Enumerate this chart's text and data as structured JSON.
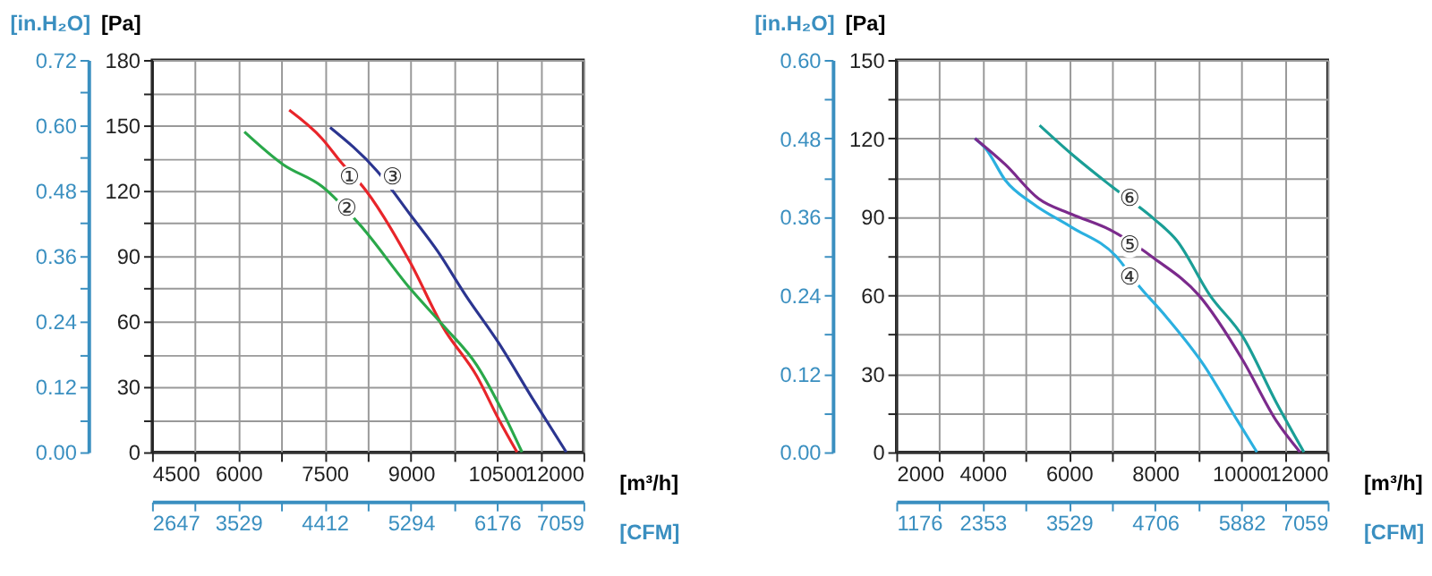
{
  "chart_data": [
    {
      "type": "line",
      "xlabel": "[m³/h]",
      "ylabel": "[Pa]",
      "y2label": "[in.H₂O]",
      "x2label": "[CFM]",
      "grid": true,
      "legend": false,
      "line_style": "solid",
      "marker": "none",
      "xlim": [
        4500,
        12000
      ],
      "xticks": [
        4500,
        {
          "value": 5250,
          "label": null
        },
        6000,
        {
          "value": 6750,
          "label": null
        },
        7500,
        {
          "value": 8250,
          "label": null
        },
        9000,
        {
          "value": 9750,
          "label": null
        },
        10500,
        {
          "value": 11250,
          "label": null
        },
        12000
      ],
      "ylim": [
        0,
        180
      ],
      "yticks": [
        0,
        {
          "value": 15,
          "label": null
        },
        30,
        {
          "value": 45,
          "label": null
        },
        60,
        {
          "value": 75,
          "label": null
        },
        90,
        {
          "value": 105,
          "label": null
        },
        120,
        {
          "value": 135,
          "label": null
        },
        150,
        {
          "value": 165,
          "label": null
        },
        180
      ],
      "y2lim": [
        0,
        0.72
      ],
      "y2ticks": [
        {
          "value": 0,
          "label": "0.00"
        },
        {
          "value": 0.06,
          "label": null
        },
        {
          "value": 0.12,
          "label": "0.12"
        },
        {
          "value": 0.18,
          "label": null
        },
        {
          "value": 0.24,
          "label": "0.24"
        },
        {
          "value": 0.3,
          "label": null
        },
        {
          "value": 0.36,
          "label": "0.36"
        },
        {
          "value": 0.42,
          "label": null
        },
        {
          "value": 0.48,
          "label": "0.48"
        },
        {
          "value": 0.54,
          "label": null
        },
        {
          "value": 0.6,
          "label": "0.60"
        },
        {
          "value": 0.66,
          "label": null
        },
        {
          "value": 0.72,
          "label": "0.72"
        }
      ],
      "x2lim": [
        2647,
        7059
      ],
      "x2ticks": [
        2647,
        {
          "value": 3088,
          "label": null
        },
        3529,
        {
          "value": 3971,
          "label": null
        },
        4412,
        {
          "value": 4853,
          "label": null
        },
        5294,
        {
          "value": 5735,
          "label": null
        },
        6176,
        {
          "value": 6618,
          "label": null
        },
        7059
      ],
      "series": [
        {
          "color": "#e8252a",
          "x": [
            6885,
            7452,
            7788,
            8221,
            8990,
            9567,
            10144,
            10529,
            10846
          ],
          "values": [
            157,
            144,
            133,
            120,
            87,
            57,
            35,
            15,
            0
          ]
        },
        {
          "color": "#2aa84a",
          "x": [
            6106,
            6779,
            7452,
            8125,
            8990,
            9567,
            10144,
            10625,
            10933
          ],
          "values": [
            147,
            132,
            122,
            104,
            75,
            58,
            40,
            17,
            0
          ]
        },
        {
          "color": "#2b3590",
          "x": [
            7596,
            8413,
            8990,
            9471,
            9952,
            10529,
            11106,
            11702
          ],
          "values": [
            149,
            129,
            109,
            92,
            72,
            50,
            25,
            0
          ]
        }
      ],
      "annotations": [
        {
          "text": "①",
          "x": 7933,
          "y": 126
        },
        {
          "text": "②",
          "x": 7885,
          "y": 112
        },
        {
          "text": "③",
          "x": 8680,
          "y": 126
        }
      ]
    },
    {
      "type": "line",
      "xlabel": "[m³/h]",
      "ylabel": "[Pa]",
      "y2label": "[in.H₂O]",
      "x2label": "[CFM]",
      "grid": true,
      "legend": false,
      "line_style": "solid",
      "marker": "none",
      "xlim": [
        2000,
        12000
      ],
      "xticks": [
        2000,
        {
          "value": 3000,
          "label": null
        },
        4000,
        {
          "value": 5000,
          "label": null
        },
        6000,
        {
          "value": 7000,
          "label": null
        },
        8000,
        {
          "value": 9000,
          "label": null
        },
        10000,
        {
          "value": 11000,
          "label": null
        },
        12000
      ],
      "ylim": [
        0,
        150
      ],
      "yticks": [
        0,
        {
          "value": 15,
          "label": null
        },
        30,
        {
          "value": 45,
          "label": null
        },
        60,
        {
          "value": 75,
          "label": null
        },
        90,
        {
          "value": 105,
          "label": null
        },
        120,
        {
          "value": 135,
          "label": null
        },
        150
      ],
      "y2lim": [
        0,
        0.6
      ],
      "y2ticks": [
        {
          "value": 0,
          "label": "0.00"
        },
        {
          "value": 0.06,
          "label": null
        },
        {
          "value": 0.12,
          "label": "0.12"
        },
        {
          "value": 0.18,
          "label": null
        },
        {
          "value": 0.24,
          "label": "0.24"
        },
        {
          "value": 0.3,
          "label": null
        },
        {
          "value": 0.36,
          "label": "0.36"
        },
        {
          "value": 0.42,
          "label": null
        },
        {
          "value": 0.48,
          "label": "0.48"
        },
        {
          "value": 0.54,
          "label": null
        },
        {
          "value": 0.6,
          "label": "0.60"
        }
      ],
      "x2lim": [
        1176,
        7059
      ],
      "x2ticks": [
        1176,
        {
          "value": 1765,
          "label": null
        },
        2353,
        {
          "value": 2941,
          "label": null
        },
        3529,
        {
          "value": 4118,
          "label": null
        },
        4706,
        {
          "value": 5294,
          "label": null
        },
        5882,
        {
          "value": 6471,
          "label": null
        },
        7059
      ],
      "series": [
        {
          "color": "#2bb0e0",
          "x": [
            3821,
            4077,
            4526,
            5167,
            6064,
            7090,
            7603,
            8244,
            9141,
            9910,
            10359
          ],
          "values": [
            120,
            116,
            104,
            95,
            86,
            75,
            64,
            52,
            33,
            12,
            0
          ]
        },
        {
          "color": "#7b2a8c",
          "x": [
            3821,
            4526,
            5295,
            6064,
            6962,
            7987,
            9013,
            10038,
            10808,
            11359
          ],
          "values": [
            120,
            110,
            97,
            91,
            85,
            74,
            60,
            35,
            12,
            0
          ]
        },
        {
          "color": "#1a9e96",
          "x": [
            5321,
            6064,
            6962,
            7987,
            8500,
            9269,
            10038,
            10808,
            11449
          ],
          "values": [
            125,
            114,
            102,
            89,
            81,
            60,
            44,
            19,
            0
          ]
        }
      ],
      "annotations": [
        {
          "text": "⑥",
          "x": 7410,
          "y": 97
        },
        {
          "text": "⑤",
          "x": 7410,
          "y": 79
        },
        {
          "text": "④",
          "x": 7410,
          "y": 67
        }
      ]
    }
  ]
}
